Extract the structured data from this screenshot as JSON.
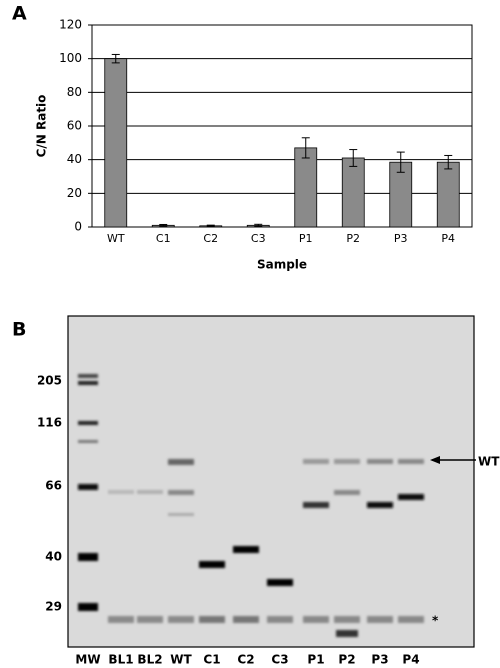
{
  "chart_data": {
    "type": "bar",
    "panel_label": "A",
    "x_label": "Sample",
    "y_label": "C/N Ratio",
    "categories": [
      "WT",
      "C1",
      "C2",
      "C3",
      "P1",
      "P2",
      "P3",
      "P4"
    ],
    "series": [
      {
        "color": "#8a8a8a",
        "values": [
          100,
          1,
          0.7,
          1,
          47,
          41,
          38.5,
          38.5
        ],
        "errors": [
          2.5,
          0.5,
          0.4,
          0.6,
          6,
          5,
          6,
          4
        ]
      }
    ],
    "ylim": [
      0,
      120
    ],
    "yticks": [
      0,
      20,
      40,
      60,
      80,
      100,
      120
    ],
    "grid": true
  },
  "gel": {
    "panel_label": "B",
    "mw_markers": [
      "205",
      "116",
      "66",
      "40",
      "29"
    ],
    "lanes": [
      "MW",
      "BL1",
      "BL2",
      "WT",
      "C1",
      "C2",
      "C3",
      "P1",
      "P2",
      "P3",
      "P4"
    ],
    "wt_label": "WT",
    "asterisk": "*"
  }
}
